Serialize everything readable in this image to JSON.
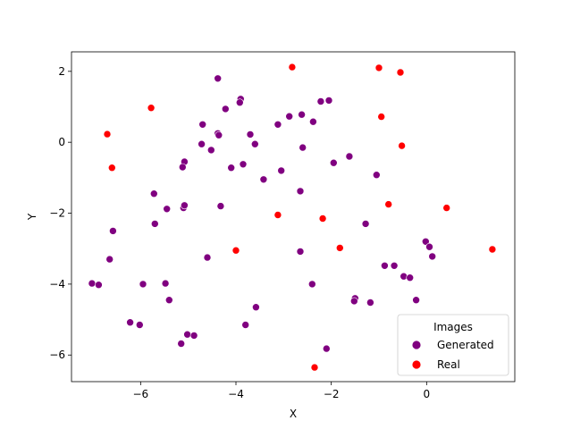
{
  "chart_data": {
    "type": "scatter",
    "title": "",
    "xlabel": "X",
    "ylabel": "Y",
    "xlim": [
      -7.45,
      1.85
    ],
    "ylim": [
      -6.75,
      2.55
    ],
    "xticks": [
      -6,
      -4,
      -2,
      0
    ],
    "xtick_labels": [
      "−6",
      "−4",
      "−2",
      "0"
    ],
    "yticks": [
      -6,
      -4,
      -2,
      0,
      2
    ],
    "ytick_labels": [
      "−6",
      "−4",
      "−2",
      "0",
      "2"
    ],
    "grid": false,
    "legend": {
      "title": "Images",
      "placement": "lower-right"
    },
    "series": [
      {
        "name": "Generated",
        "color": "#800080",
        "points": [
          [
            -4.38,
            1.8
          ],
          [
            -3.9,
            1.22
          ],
          [
            -3.92,
            1.12
          ],
          [
            -2.22,
            1.15
          ],
          [
            -2.05,
            1.18
          ],
          [
            -4.22,
            0.94
          ],
          [
            -2.88,
            0.73
          ],
          [
            -2.62,
            0.78
          ],
          [
            -2.38,
            0.58
          ],
          [
            -3.12,
            0.5
          ],
          [
            -4.7,
            0.5
          ],
          [
            -4.38,
            0.25
          ],
          [
            -4.36,
            0.2
          ],
          [
            -3.7,
            0.22
          ],
          [
            -3.6,
            -0.05
          ],
          [
            -4.72,
            -0.05
          ],
          [
            -4.52,
            -0.22
          ],
          [
            -2.6,
            -0.15
          ],
          [
            -5.08,
            -0.55
          ],
          [
            -5.12,
            -0.7
          ],
          [
            -4.1,
            -0.72
          ],
          [
            -3.85,
            -0.62
          ],
          [
            -3.05,
            -0.8
          ],
          [
            -1.95,
            -0.58
          ],
          [
            -1.62,
            -0.4
          ],
          [
            -3.42,
            -1.05
          ],
          [
            -1.05,
            -0.92
          ],
          [
            -2.65,
            -1.38
          ],
          [
            -5.72,
            -1.45
          ],
          [
            -5.45,
            -1.88
          ],
          [
            -5.1,
            -1.85
          ],
          [
            -5.08,
            -1.78
          ],
          [
            -4.32,
            -1.8
          ],
          [
            -5.7,
            -2.3
          ],
          [
            -1.28,
            -2.3
          ],
          [
            -6.58,
            -2.5
          ],
          [
            -6.65,
            -3.3
          ],
          [
            -4.6,
            -3.25
          ],
          [
            -2.65,
            -3.08
          ],
          [
            -0.02,
            -2.8
          ],
          [
            0.06,
            -2.95
          ],
          [
            0.12,
            -3.22
          ],
          [
            -0.88,
            -3.48
          ],
          [
            -0.68,
            -3.48
          ],
          [
            -0.48,
            -3.78
          ],
          [
            -0.35,
            -3.82
          ],
          [
            -7.02,
            -3.98
          ],
          [
            -6.88,
            -4.02
          ],
          [
            -5.95,
            -4.0
          ],
          [
            -5.48,
            -3.98
          ],
          [
            -2.4,
            -4.0
          ],
          [
            -5.4,
            -4.45
          ],
          [
            -1.5,
            -4.4
          ],
          [
            -1.52,
            -4.48
          ],
          [
            -1.18,
            -4.52
          ],
          [
            -0.22,
            -4.45
          ],
          [
            -3.58,
            -4.65
          ],
          [
            -6.22,
            -5.08
          ],
          [
            -6.02,
            -5.15
          ],
          [
            -3.8,
            -5.15
          ],
          [
            -5.02,
            -5.42
          ],
          [
            -4.88,
            -5.45
          ],
          [
            -5.15,
            -5.68
          ],
          [
            -2.1,
            -5.82
          ]
        ]
      },
      {
        "name": "Real",
        "color": "#ff0000",
        "points": [
          [
            -2.82,
            2.12
          ],
          [
            -1.0,
            2.1
          ],
          [
            -0.55,
            1.97
          ],
          [
            -5.78,
            0.97
          ],
          [
            -0.95,
            0.72
          ],
          [
            -6.7,
            0.23
          ],
          [
            -0.52,
            -0.1
          ],
          [
            -6.6,
            -0.72
          ],
          [
            -0.8,
            -1.75
          ],
          [
            0.42,
            -1.85
          ],
          [
            -3.12,
            -2.05
          ],
          [
            -2.18,
            -2.15
          ],
          [
            -4.0,
            -3.05
          ],
          [
            -1.82,
            -2.98
          ],
          [
            1.38,
            -3.02
          ],
          [
            -2.35,
            -6.35
          ]
        ]
      }
    ]
  }
}
